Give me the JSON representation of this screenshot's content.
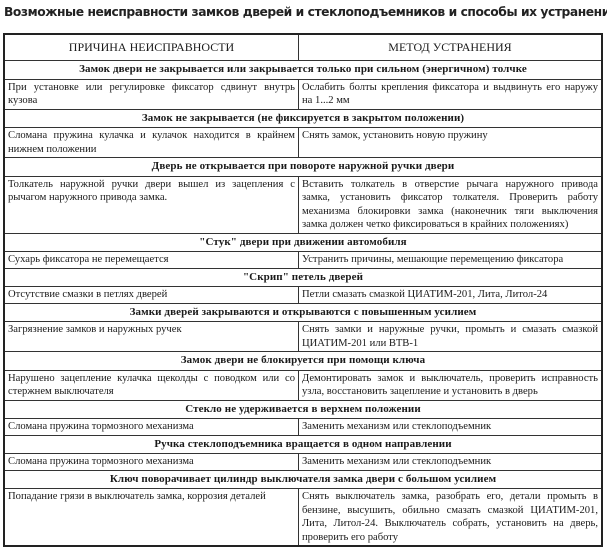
{
  "title": "Возможные неисправности замков дверей и стеклоподъемников и способы их устранения",
  "columns": [
    "ПРИЧИНА НЕИСПРАВНОСТИ",
    "МЕТОД УСТРАНЕНИЯ"
  ],
  "sections": [
    {
      "heading": "Замок двери не закрывается или закрывается только при сильном (энергичном) толчке",
      "cause": "При установке или регулировке фиксатор сдвинут внутрь кузова",
      "remedy": "Ослабить болты крепления фиксатора и выдвинуть его наружу на 1...2 мм"
    },
    {
      "heading": "Замок не закрывается (не фиксируется в закрытом положении)",
      "cause": "Сломана пружина кулачка и кулачок находится в крайнем нижнем положении",
      "remedy": "Снять замок, установить новую пружину"
    },
    {
      "heading": "Дверь не открывается при повороте наружной ручки двери",
      "cause": "Толкатель наружной ручки двери вышел из зацепления с рычагом наружного привода замка.",
      "remedy": "Вставить толкатель в отверстие рычага наружного привода замка, установить фиксатор толкателя. Проверить работу механизма блокировки замка (наконечник тяги выключения замка должен четко фиксироваться в крайних положениях)"
    },
    {
      "heading": "\"Стук\" двери при движении автомобиля",
      "cause": "Сухарь фиксатора не перемещается",
      "remedy": "Устранить причины, мешающие перемещению фиксатора"
    },
    {
      "heading": "\"Скрип\" петель дверей",
      "cause": "Отсутствие смазки в петлях дверей",
      "remedy": "Петли смазать смазкой ЦИАТИМ-201, Лита, Литол-24"
    },
    {
      "heading": "Замки дверей закрываются и открываются с повышенным усилием",
      "cause": "Загрязнение замков и наружных ручек",
      "remedy": "Снять замки и наружные ручки, промыть и смазать смазкой ЦИАТИМ-201 или ВТВ-1"
    },
    {
      "heading": "Замок двери не блокируется при помощи ключа",
      "cause": "Нарушено зацепление кулачка щеколды с поводком или со стержнем выключателя",
      "remedy": "Демонтировать замок и выключатель, проверить исправность узла, восстановить зацепление и установить в дверь"
    },
    {
      "heading": "Стекло не удерживается в верхнем положении",
      "cause": "Сломана пружина тормозного механизма",
      "remedy": "Заменить механизм или стеклоподъемник"
    },
    {
      "heading": "Ручка стеклоподъемника вращается в одном направлении",
      "cause": "Сломана пружина тормозного механизма",
      "remedy": "Заменить механизм или стеклоподъемник"
    },
    {
      "heading": "Ключ поворачивает цилиндр выключателя замка двери с большом усилием",
      "cause": "Попадание грязи в выключатель замка, коррозия деталей",
      "remedy": "Снять выключатель замка, разобрать его, детали промыть в бензине, высушить, обильно смазать смазкой ЦИАТИМ-201, Лита, Литол-24. Выключатель собрать, установить на дверь, проверить его работу"
    }
  ]
}
